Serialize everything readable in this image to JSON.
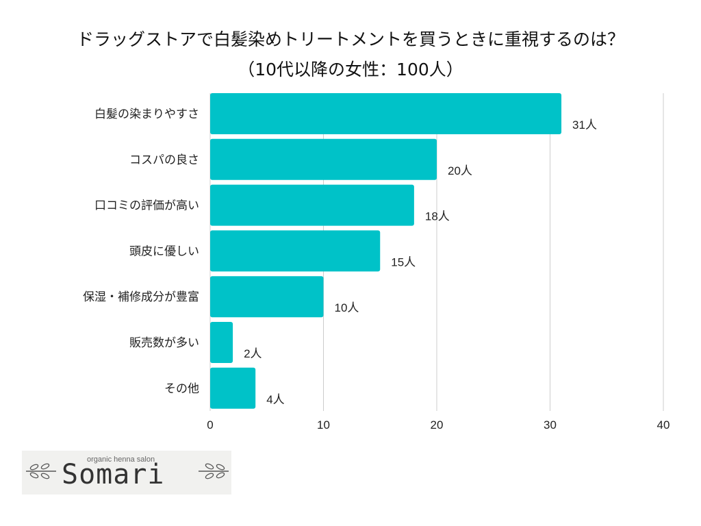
{
  "title": {
    "line1": "ドラッグストアで白髪染めトリートメントを買うときに重視するのは？",
    "line2": "（10代以降の女性：100人）"
  },
  "chart_data": {
    "type": "bar",
    "orientation": "horizontal",
    "categories": [
      "白髪の染まりやすさ",
      "コスパの良さ",
      "口コミの評価が高い",
      "頭皮に優しい",
      "保湿・補修成分が豊富",
      "販売数が多い",
      "その他"
    ],
    "values": [
      31,
      20,
      18,
      15,
      10,
      2,
      4
    ],
    "value_labels": [
      "31人",
      "20人",
      "18人",
      "15人",
      "10人",
      "2人",
      "4人"
    ],
    "xlim": [
      0,
      40
    ],
    "xticks": [
      "0",
      "10",
      "20",
      "30",
      "40"
    ],
    "grid": true,
    "bar_color": "#00c2c8",
    "grid_color": "#cccccc"
  },
  "logo": {
    "subtitle": "organic henna salon",
    "name": "Somari"
  }
}
